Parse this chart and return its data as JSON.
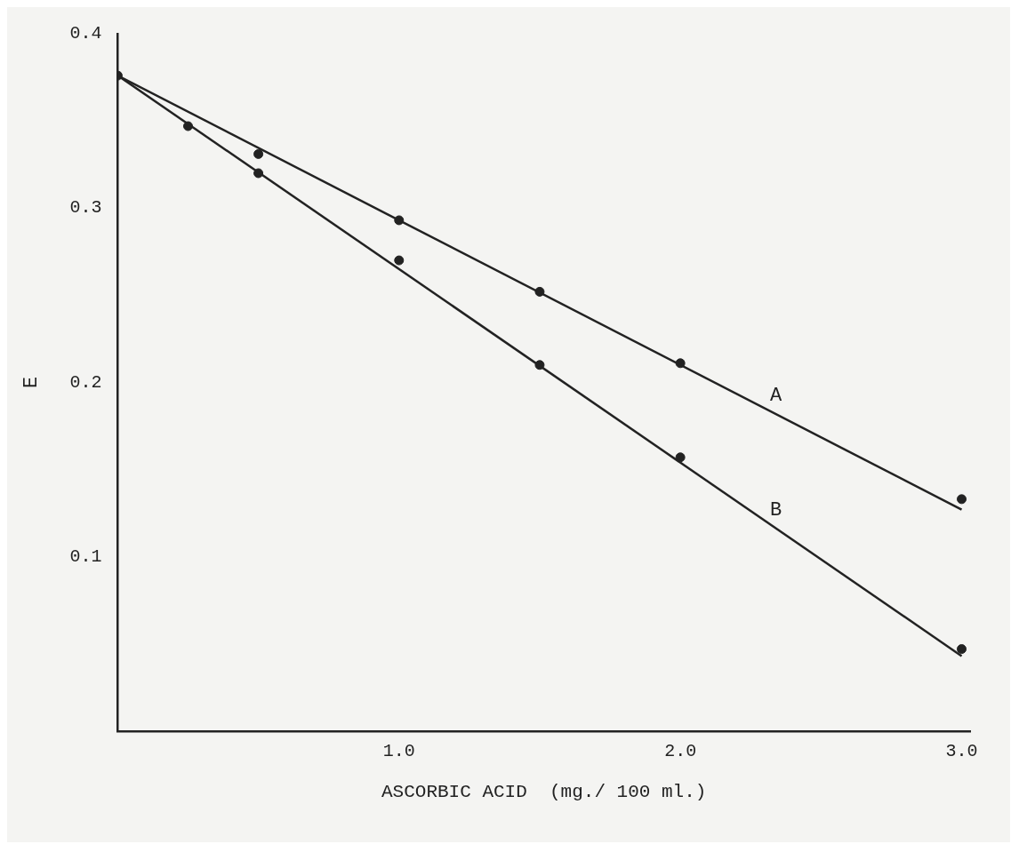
{
  "chart_data": {
    "type": "scatter",
    "xlabel": "ASCORBIC ACID  (mg./ 100 ml.)",
    "ylabel": "E",
    "xlim": [
      0,
      3.03
    ],
    "ylim": [
      0,
      0.4
    ],
    "xticks": [
      {
        "value": 1,
        "label": "1.0"
      },
      {
        "value": 2,
        "label": "2.0"
      },
      {
        "value": 3,
        "label": "3.0"
      }
    ],
    "yticks": [
      {
        "value": 0.1,
        "label": "0.1"
      },
      {
        "value": 0.2,
        "label": "0.2"
      },
      {
        "value": 0.3,
        "label": "0.3"
      },
      {
        "value": 0.4,
        "label": "0.4"
      }
    ],
    "grid": false,
    "legend": false,
    "marker": "circle",
    "series": [
      {
        "color": "#222222",
        "x": [
          0,
          0.5,
          1.0,
          1.5,
          2.0,
          3.0
        ],
        "values": [
          0.376,
          0.331,
          0.293,
          0.252,
          0.211,
          0.133
        ]
      },
      {
        "color": "#222222",
        "x": [
          0.25,
          0.5,
          1.0,
          1.5,
          2.0,
          3.0
        ],
        "values": [
          0.347,
          0.32,
          0.27,
          0.21,
          0.157,
          0.047
        ]
      },
      {
        "type": "line",
        "name": "A",
        "marker": "none",
        "color": "#222222",
        "x": [
          0,
          3.0
        ],
        "values": [
          0.376,
          0.127
        ]
      },
      {
        "type": "line",
        "name": "B",
        "marker": "none",
        "color": "#222222",
        "x": [
          0,
          3.0
        ],
        "values": [
          0.376,
          0.043
        ]
      }
    ]
  }
}
